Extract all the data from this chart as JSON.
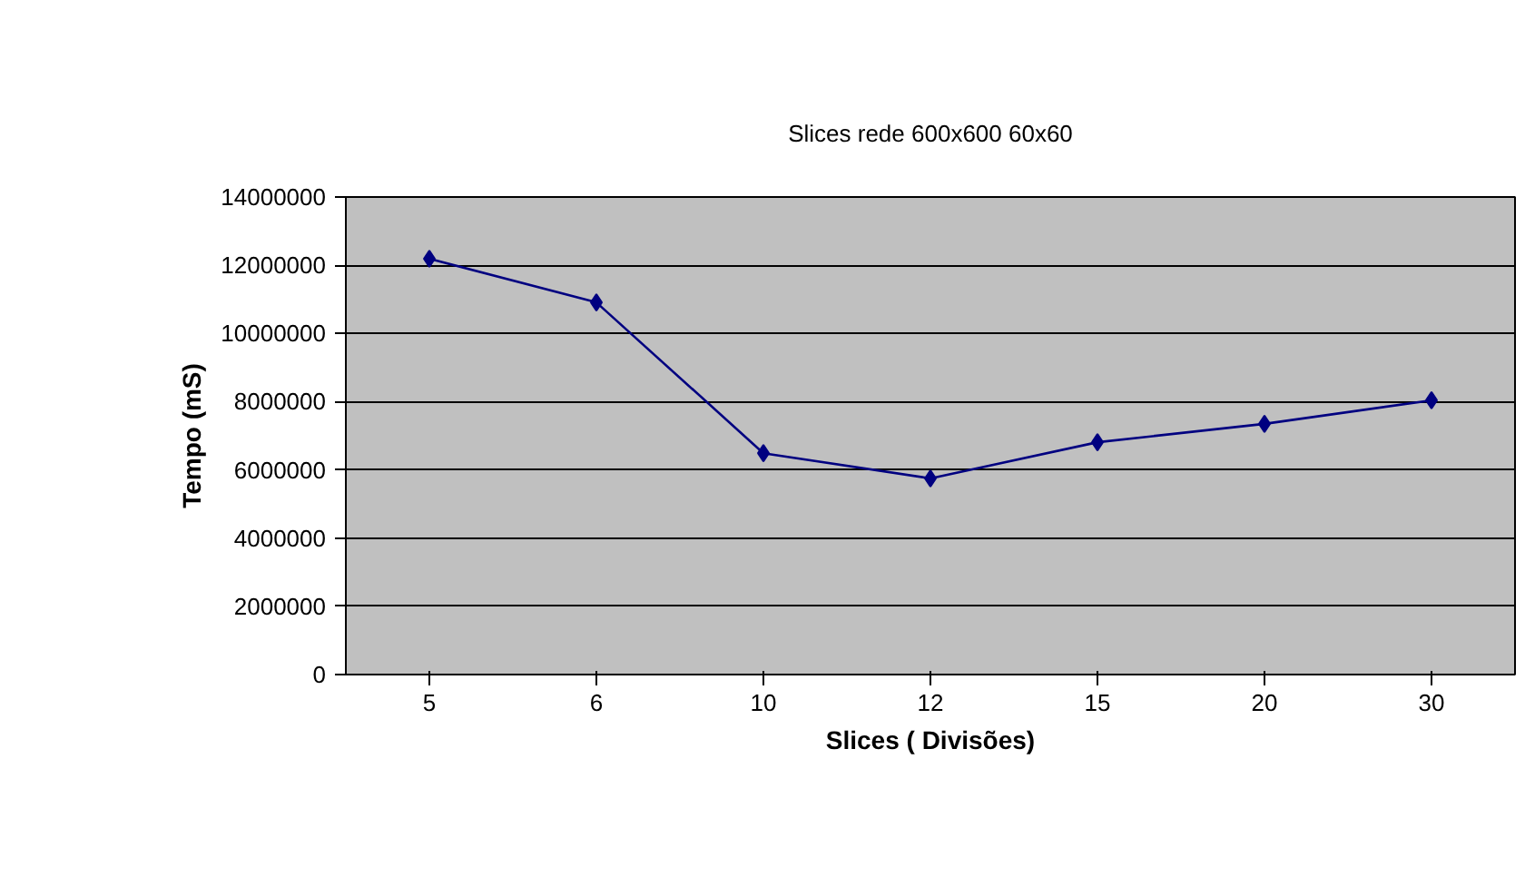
{
  "chart_data": {
    "type": "line",
    "title": "Slices rede 600x600 60x60",
    "xlabel": "Slices ( Divisões)",
    "ylabel": "Tempo (mS)",
    "categories": [
      "5",
      "6",
      "10",
      "12",
      "15",
      "20",
      "30"
    ],
    "series": [
      {
        "color": "#000080",
        "values": [
          12190000,
          10910000,
          6490000,
          5750000,
          6810000,
          7350000,
          8040000
        ]
      }
    ],
    "ylim": [
      0,
      14000000
    ],
    "yticks": [
      0,
      2000000,
      4000000,
      6000000,
      8000000,
      10000000,
      12000000,
      14000000
    ],
    "grid": "y",
    "marker": "diamond",
    "line_style": "solid"
  }
}
